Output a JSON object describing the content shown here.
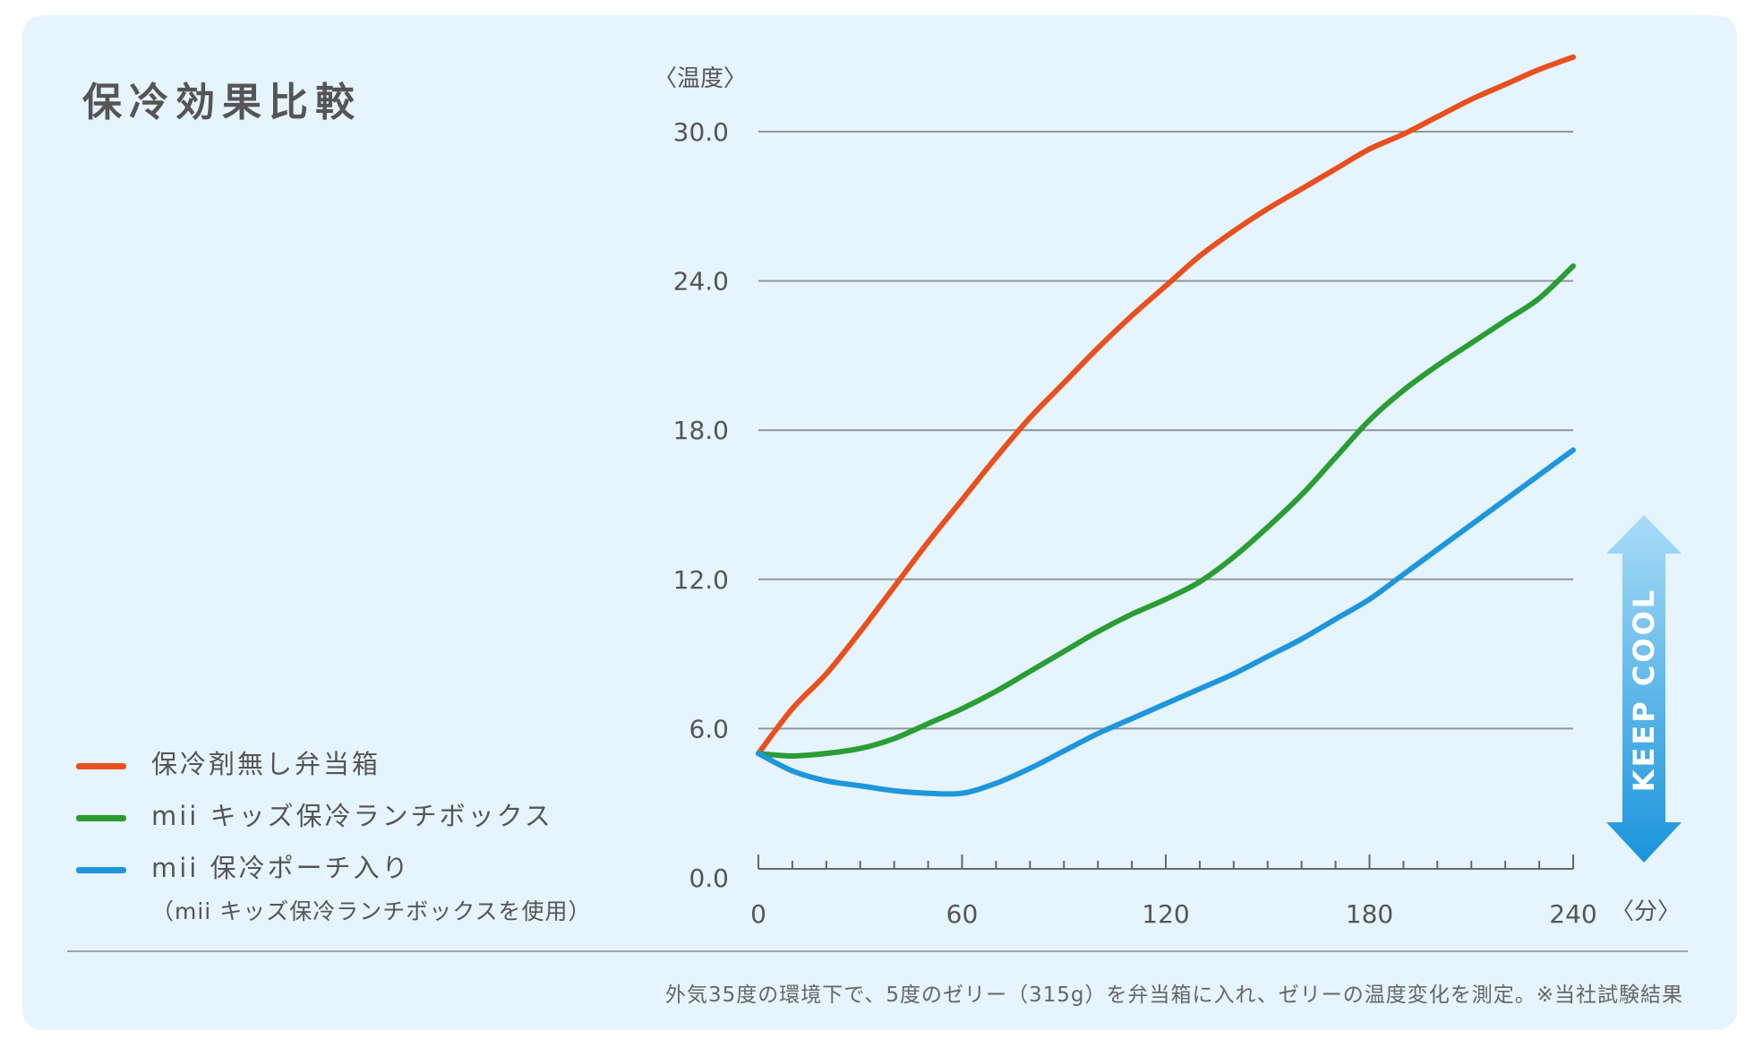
{
  "page": {
    "title": "保冷効果比較",
    "footnote": "外気35度の環境下で、5度のゼリー（315g）を弁当箱に入れ、ゼリーの温度変化を測定。※当社試験結果"
  },
  "legend": {
    "items": [
      {
        "label": "保冷剤無し弁当箱",
        "color": "#e8501e"
      },
      {
        "label": "mii キッズ保冷ランチボックス",
        "color": "#2a9d34"
      },
      {
        "label": "mii 保冷ポーチ入り",
        "color": "#1e96dc"
      }
    ],
    "sub_note": "（mii キッズ保冷ランチボックスを使用）"
  },
  "badge": {
    "text": "KEEP COOL",
    "color_top": "#a8dcf7",
    "color_bottom": "#1a94dc"
  },
  "chart_data": {
    "type": "line",
    "title": "保冷効果比較",
    "ylabel": "〈温度〉",
    "xlabel": "〈分〉",
    "ylim": [
      0,
      30
    ],
    "xlim": [
      0,
      240
    ],
    "yticks": [
      0,
      6,
      12,
      18,
      24,
      30
    ],
    "ytick_labels": [
      "0.0",
      "6.0",
      "12.0",
      "18.0",
      "24.0",
      "30.0"
    ],
    "xticks": [
      0,
      60,
      120,
      180,
      240
    ],
    "xtick_labels": [
      "0",
      "60",
      "120",
      "180",
      "240"
    ],
    "grid": true,
    "series": [
      {
        "name": "保冷剤無し弁当箱",
        "color": "#e8501e",
        "x": [
          0,
          10,
          20,
          30,
          40,
          50,
          60,
          70,
          80,
          90,
          100,
          110,
          120,
          130,
          140,
          150,
          160,
          170,
          180,
          190,
          200,
          210,
          220,
          230,
          240
        ],
        "y": [
          5.0,
          6.8,
          8.2,
          9.9,
          11.7,
          13.5,
          15.2,
          16.9,
          18.5,
          19.9,
          21.3,
          22.6,
          23.8,
          25.0,
          26.0,
          26.9,
          27.7,
          28.5,
          29.3,
          29.9,
          30.6,
          31.3,
          31.9,
          32.5,
          33.0
        ]
      },
      {
        "name": "mii キッズ保冷ランチボックス",
        "color": "#2a9d34",
        "x": [
          0,
          10,
          20,
          30,
          40,
          50,
          60,
          70,
          80,
          90,
          100,
          110,
          120,
          130,
          140,
          150,
          160,
          170,
          180,
          190,
          200,
          210,
          220,
          230,
          240
        ],
        "y": [
          5.0,
          4.9,
          5.0,
          5.2,
          5.6,
          6.2,
          6.8,
          7.5,
          8.3,
          9.1,
          9.9,
          10.6,
          11.2,
          11.9,
          12.9,
          14.1,
          15.4,
          16.9,
          18.4,
          19.6,
          20.6,
          21.5,
          22.4,
          23.3,
          24.6
        ]
      },
      {
        "name": "mii 保冷ポーチ入り",
        "color": "#1e96dc",
        "x": [
          0,
          10,
          20,
          30,
          40,
          50,
          60,
          70,
          80,
          90,
          100,
          110,
          120,
          130,
          140,
          150,
          160,
          170,
          180,
          190,
          200,
          210,
          220,
          230,
          240
        ],
        "y": [
          5.0,
          4.3,
          3.9,
          3.7,
          3.5,
          3.4,
          3.4,
          3.8,
          4.4,
          5.1,
          5.8,
          6.4,
          7.0,
          7.6,
          8.2,
          8.9,
          9.6,
          10.4,
          11.2,
          12.2,
          13.2,
          14.2,
          15.2,
          16.2,
          17.2
        ]
      }
    ]
  }
}
